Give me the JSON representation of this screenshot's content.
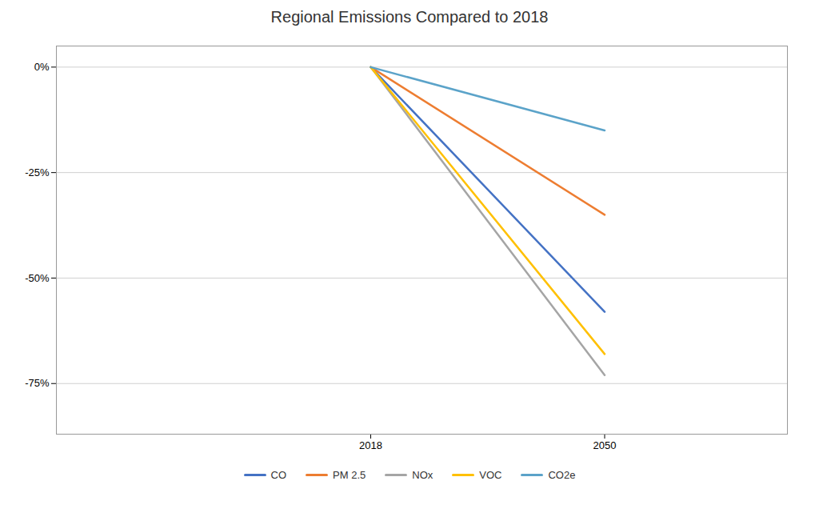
{
  "chart_data": {
    "type": "line",
    "title": "Regional Emissions Compared to 2018",
    "x": [
      2018,
      2050
    ],
    "series": [
      {
        "name": "CO",
        "color": "#4472C4",
        "values": [
          0,
          -0.58
        ]
      },
      {
        "name": "PM 2.5",
        "color": "#ED7D31",
        "values": [
          0,
          -0.35
        ]
      },
      {
        "name": "NOx",
        "color": "#A5A5A5",
        "values": [
          0,
          -0.73
        ]
      },
      {
        "name": "VOC",
        "color": "#FFC000",
        "values": [
          0,
          -0.68
        ]
      },
      {
        "name": "CO2e",
        "color": "#5BA3C9",
        "values": [
          0,
          -0.15
        ]
      }
    ],
    "xlim": [
      1975,
      2075
    ],
    "xticks": [
      2018,
      2050
    ],
    "ylim": [
      -0.87,
      0.05
    ],
    "yticks": [
      {
        "value": 0,
        "label": "0%"
      },
      {
        "value": -0.25,
        "label": "-25%"
      },
      {
        "value": -0.5,
        "label": "-50%"
      },
      {
        "value": -0.75,
        "label": "-75%"
      }
    ],
    "grid": "y",
    "legend": "bottom"
  }
}
